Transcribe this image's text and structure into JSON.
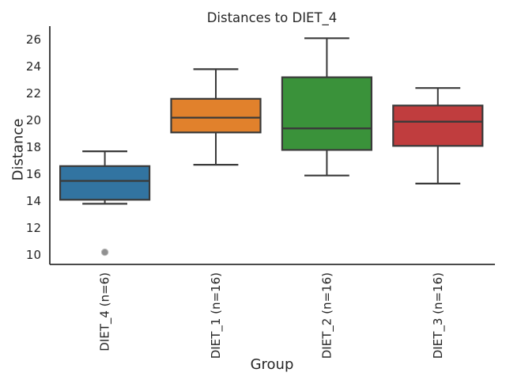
{
  "figure": {
    "title": "Distances to DIET_4",
    "xlabel": "Group",
    "ylabel": "Distance"
  },
  "chart_data": {
    "type": "box",
    "title": "Distances to DIET_4",
    "xlabel": "Group",
    "ylabel": "Distance",
    "y_ticks": [
      10,
      12,
      14,
      16,
      18,
      20,
      22,
      24,
      26
    ],
    "ylim": [
      9.3,
      27.0
    ],
    "grid": false,
    "legend": null,
    "categories": [
      "DIET_4 (n=6)",
      "DIET_1 (n=16)",
      "DIET_2 (n=16)",
      "DIET_3 (n=16)"
    ],
    "groups": [
      {
        "label": "DIET_4 (n=6)",
        "color": "#3274a1",
        "whisker_low": 13.8,
        "q1": 14.1,
        "median": 15.5,
        "q3": 16.6,
        "whisker_high": 17.7,
        "outliers": [
          10.2
        ]
      },
      {
        "label": "DIET_1 (n=16)",
        "color": "#e1812c",
        "whisker_low": 16.7,
        "q1": 19.1,
        "median": 20.2,
        "q3": 21.6,
        "whisker_high": 23.8,
        "outliers": []
      },
      {
        "label": "DIET_2 (n=16)",
        "color": "#3a923a",
        "whisker_low": 15.9,
        "q1": 17.8,
        "median": 19.4,
        "q3": 23.2,
        "whisker_high": 26.1,
        "outliers": []
      },
      {
        "label": "DIET_3 (n=16)",
        "color": "#c03d3e",
        "whisker_low": 15.3,
        "q1": 18.1,
        "median": 19.9,
        "q3": 21.1,
        "whisker_high": 22.4,
        "outliers": []
      }
    ],
    "style": {
      "box_edge_color": "#3a3a3a",
      "spine_color": "#303030",
      "outlier_fill": "#909090",
      "outlier_edge": "#bdbdbd",
      "text_color": "#262626",
      "background": "#ffffff"
    }
  }
}
